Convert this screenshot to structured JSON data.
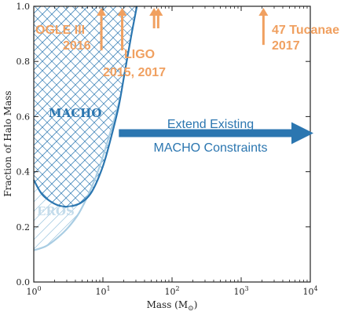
{
  "chart_data": {
    "type": "line",
    "xlabel": "Mass (M",
    "xlabel_sub": "⊙",
    "xlabel_close": ")",
    "ylabel": "Fraction of Halo Mass",
    "xscale": "log",
    "xlim": [
      1,
      10000
    ],
    "ylim": [
      0,
      1
    ],
    "x_tick_labels": [
      {
        "base": "10",
        "exp": "0"
      },
      {
        "base": "10",
        "exp": "1"
      },
      {
        "base": "10",
        "exp": "2"
      },
      {
        "base": "10",
        "exp": "3"
      },
      {
        "base": "10",
        "exp": "4"
      }
    ],
    "y_tick_labels": [
      "0.0",
      "0.2",
      "0.4",
      "0.6",
      "0.8",
      "1.0"
    ],
    "y_ticks": [
      0,
      0.2,
      0.4,
      0.6,
      0.8,
      1.0
    ],
    "x_ticks": [
      1,
      10,
      100,
      1000,
      10000
    ],
    "grid": false,
    "series": [
      {
        "label": "MACHO",
        "color": "#2b76b0",
        "x": [
          1.0,
          1.3,
          1.8,
          2.5,
          3.5,
          5.0,
          7.0,
          10.0,
          13.0,
          17.0,
          21.0,
          26.0,
          31.0
        ],
        "y": [
          0.37,
          0.32,
          0.29,
          0.275,
          0.275,
          0.29,
          0.33,
          0.42,
          0.52,
          0.64,
          0.77,
          0.9,
          1.0
        ]
      },
      {
        "label": "EROS",
        "color": "#a9cde3",
        "x": [
          1.0,
          1.5,
          2.2,
          3.2,
          4.5,
          6.5,
          9.0,
          12.0,
          15.0,
          17.5
        ],
        "y": [
          0.115,
          0.13,
          0.16,
          0.2,
          0.25,
          0.33,
          0.42,
          0.52,
          0.6,
          0.66
        ]
      }
    ],
    "annotations": [
      {
        "text": [
          "OGLE III",
          "2016"
        ],
        "arrow_x": [
          9.5
        ]
      },
      {
        "text": [
          "LIGO",
          "2015, 2017"
        ],
        "arrow_x": [
          19,
          55,
          63
        ]
      },
      {
        "text": [
          "47 Tucanae",
          "2017"
        ],
        "arrow_x": [
          2100
        ]
      },
      {
        "text": [
          "Extend Existing",
          "MACHO Constraints"
        ],
        "arrow_from_x": 17,
        "arrow_to_x": 10000,
        "arrow_y": 0.54
      }
    ],
    "colors": {
      "macho": "#2b76b0",
      "eros": "#a9cde3",
      "orange": "#f0a060",
      "arrow_blue": "#2b76b0"
    }
  }
}
